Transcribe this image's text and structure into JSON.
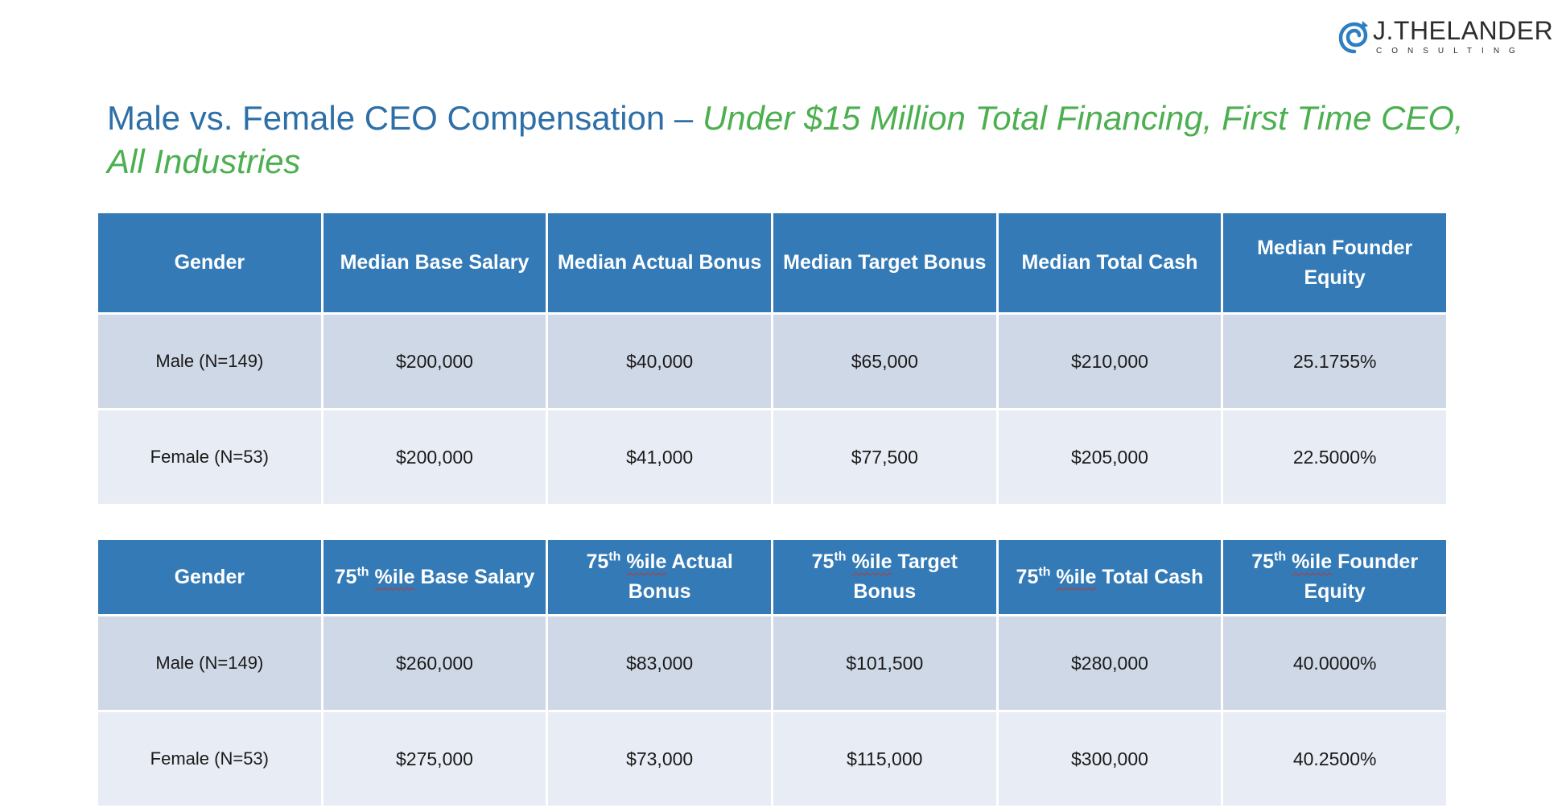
{
  "logo": {
    "name": "J.THELANDER",
    "subtitle": "CONSULTING",
    "colors": {
      "mark": "#2e7fc2",
      "text": "#2d2d2d"
    }
  },
  "title": {
    "lead": "Male vs. Female CEO Compensation – ",
    "emphasis": "Under $15 Million Total Financing, First Time CEO, All Industries"
  },
  "colors": {
    "header_bg": "#337ab7",
    "row_odd_bg": "#cfd8e6",
    "row_even_bg": "#e8ecf4",
    "title_blue": "#2e6fa8",
    "title_green": "#4caf50"
  },
  "median_table": {
    "headers": [
      "Gender",
      "Median Base Salary",
      "Median Actual Bonus",
      "Median Target Bonus",
      "Median Total Cash",
      "Median Founder Equity"
    ],
    "rows": [
      [
        "Male (N=149)",
        "$200,000",
        "$40,000",
        "$65,000",
        "$210,000",
        "25.1755%"
      ],
      [
        "Female (N=53)",
        "$200,000",
        "$41,000",
        "$77,500",
        "$205,000",
        "22.5000%"
      ]
    ]
  },
  "percentile_table": {
    "gender_header": "Gender",
    "headers": [
      {
        "num": "75",
        "sup": "th",
        "ile": "%ile",
        "rest": "Base Salary"
      },
      {
        "num": "75",
        "sup": "th",
        "ile": "%ile",
        "rest": "Actual Bonus"
      },
      {
        "num": "75",
        "sup": "th",
        "ile": "%ile",
        "rest": "Target Bonus"
      },
      {
        "num": "75",
        "sup": "th",
        "ile": "%ile",
        "rest": "Total Cash"
      },
      {
        "num": "75",
        "sup": "th",
        "ile": "%ile",
        "rest": "Founder Equity"
      }
    ],
    "rows": [
      [
        "Male (N=149)",
        "$260,000",
        "$83,000",
        "$101,500",
        "$280,000",
        "40.0000%"
      ],
      [
        "Female (N=53)",
        "$275,000",
        "$73,000",
        "$115,000",
        "$300,000",
        "40.2500%"
      ]
    ]
  }
}
